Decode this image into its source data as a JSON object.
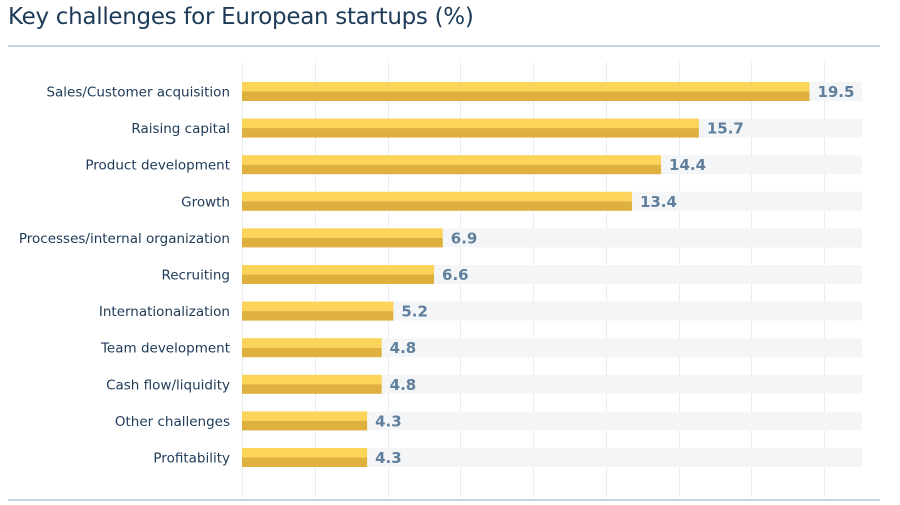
{
  "chart_data": {
    "type": "bar",
    "orientation": "horizontal",
    "title": "Key challenges for European startups (%)",
    "xlabel": "",
    "ylabel": "",
    "xlim": [
      0,
      22
    ],
    "grid": true,
    "categories": [
      "Sales/Customer acquisition",
      "Raising capital",
      "Product development",
      "Growth",
      "Processes/internal organization",
      "Recruiting",
      "Internationalization",
      "Team development",
      "Cash flow/liquidity",
      "Other challenges",
      "Profitability"
    ],
    "values": [
      19.5,
      15.7,
      14.4,
      13.4,
      6.9,
      6.6,
      5.2,
      4.8,
      4.8,
      4.3,
      4.3
    ],
    "value_labels": [
      "19.5",
      "15.7",
      "14.4",
      "13.4",
      "6.9",
      "6.6",
      "5.2",
      "4.8",
      "4.8",
      "4.3",
      "4.3"
    ],
    "colors": {
      "bar_light": "#fcd45a",
      "bar_dark": "#e0b03e",
      "track": "#f3f5f7",
      "grid": "#e8edf1",
      "value_text": "#5f7f9c",
      "label_text": "#1d3a57"
    }
  }
}
